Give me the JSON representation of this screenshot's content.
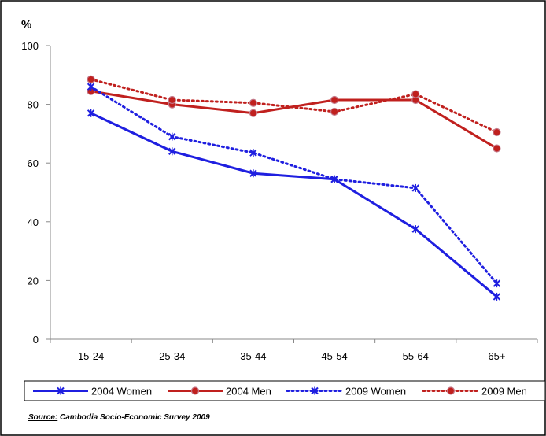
{
  "chart_data": {
    "type": "line",
    "ylabel": "%",
    "ylim": [
      0,
      100
    ],
    "yticks": [
      0,
      20,
      40,
      60,
      80,
      100
    ],
    "categories": [
      "15-24",
      "25-34",
      "35-44",
      "45-54",
      "55-64",
      "65+"
    ],
    "series": [
      {
        "name": "2004 Women",
        "values": [
          77,
          64,
          56.5,
          54.5,
          37.5,
          14.5
        ],
        "color": "#1f1fe0",
        "style": "solid",
        "marker": "x"
      },
      {
        "name": "2004 Men",
        "values": [
          84.5,
          80,
          77,
          81.5,
          81.5,
          65
        ],
        "color": "#c0201e",
        "style": "solid",
        "marker": "circle"
      },
      {
        "name": "2009 Women",
        "values": [
          86,
          69,
          63.5,
          54.5,
          51.5,
          19
        ],
        "color": "#1f1fe0",
        "style": "dotted",
        "marker": "x"
      },
      {
        "name": "2009 Men",
        "values": [
          88.5,
          81.5,
          80.5,
          77.5,
          83.5,
          70.5
        ],
        "color": "#c0201e",
        "style": "dotted",
        "marker": "circle"
      }
    ],
    "legend_position": "bottom",
    "grid": false,
    "source_label": "Source:",
    "source_text": " Cambodia Socio-Economic Survey 2009"
  }
}
